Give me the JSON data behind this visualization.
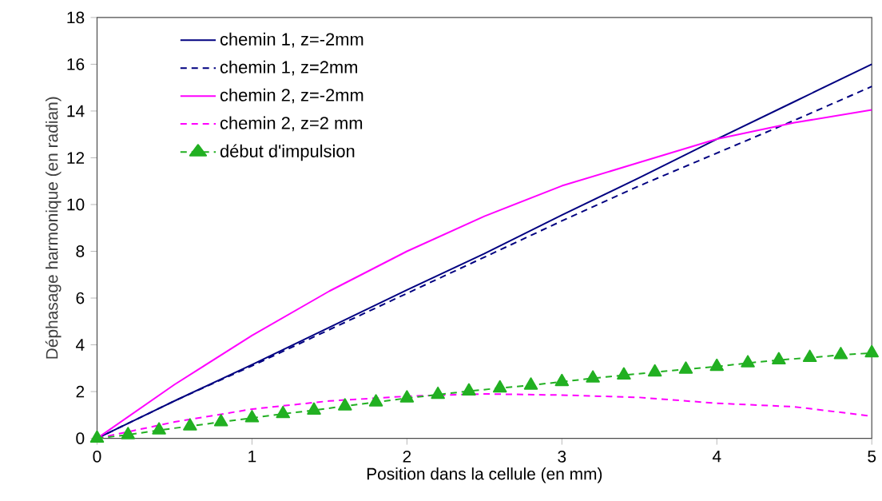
{
  "chart_data": {
    "type": "line",
    "xlabel": "Position dans la cellule (en mm)",
    "ylabel": "Déphasage harmonique (en radian)",
    "xlim": [
      0,
      5
    ],
    "ylim": [
      0,
      18
    ],
    "xticks": [
      0,
      1,
      2,
      3,
      4,
      5
    ],
    "yticks": [
      0,
      2,
      4,
      6,
      8,
      10,
      12,
      14,
      16,
      18
    ],
    "legend": "top left",
    "grid": false,
    "marker": "none",
    "series": [
      {
        "name": "chemin 1, z=-2mm",
        "color": "#000080",
        "line_style": "solid",
        "x": [
          0,
          0.5,
          1,
          1.5,
          2,
          2.5,
          3,
          3.5,
          4,
          4.5,
          5
        ],
        "values": [
          0,
          1.6,
          3.15,
          4.75,
          6.35,
          7.9,
          9.55,
          11.15,
          12.8,
          14.4,
          16.0
        ]
      },
      {
        "name": "chemin 1, z=2mm",
        "color": "#000080",
        "line_style": "dashed",
        "x": [
          0,
          0.5,
          1,
          1.5,
          2,
          2.5,
          3,
          3.5,
          4,
          4.5,
          5
        ],
        "values": [
          0,
          1.6,
          3.1,
          4.65,
          6.2,
          7.75,
          9.3,
          10.8,
          12.2,
          13.6,
          15.05
        ]
      },
      {
        "name": "chemin 2, z=-2mm",
        "color": "#ff00ff",
        "line_style": "solid",
        "x": [
          0,
          0.5,
          1,
          1.5,
          2,
          2.5,
          3,
          3.5,
          4,
          4.5,
          5
        ],
        "values": [
          0,
          2.3,
          4.4,
          6.3,
          8.0,
          9.5,
          10.8,
          11.8,
          12.8,
          13.5,
          14.05
        ]
      },
      {
        "name": "chemin 2, z=2 mm",
        "color": "#ff00ff",
        "line_style": "dashed",
        "x": [
          0,
          0.5,
          1,
          1.5,
          2,
          2.5,
          3,
          3.5,
          4,
          4.5,
          5
        ],
        "values": [
          0,
          0.7,
          1.25,
          1.6,
          1.8,
          1.9,
          1.85,
          1.75,
          1.5,
          1.35,
          0.95
        ]
      },
      {
        "name": "début d'impulsion",
        "color": "#22b022",
        "line_style": "dashed",
        "marker": "triangle",
        "x": [
          0,
          0.2,
          0.4,
          0.6,
          0.8,
          1.0,
          1.2,
          1.4,
          1.6,
          1.8,
          2.0,
          2.2,
          2.4,
          2.6,
          2.8,
          3.0,
          3.2,
          3.4,
          3.6,
          3.8,
          4.0,
          4.2,
          4.4,
          4.6,
          4.8,
          5.0
        ],
        "values": [
          0,
          0.15,
          0.35,
          0.52,
          0.7,
          0.87,
          1.05,
          1.2,
          1.38,
          1.55,
          1.72,
          1.87,
          2.02,
          2.15,
          2.27,
          2.42,
          2.57,
          2.7,
          2.83,
          2.95,
          3.07,
          3.22,
          3.35,
          3.45,
          3.57,
          3.65
        ]
      }
    ]
  }
}
